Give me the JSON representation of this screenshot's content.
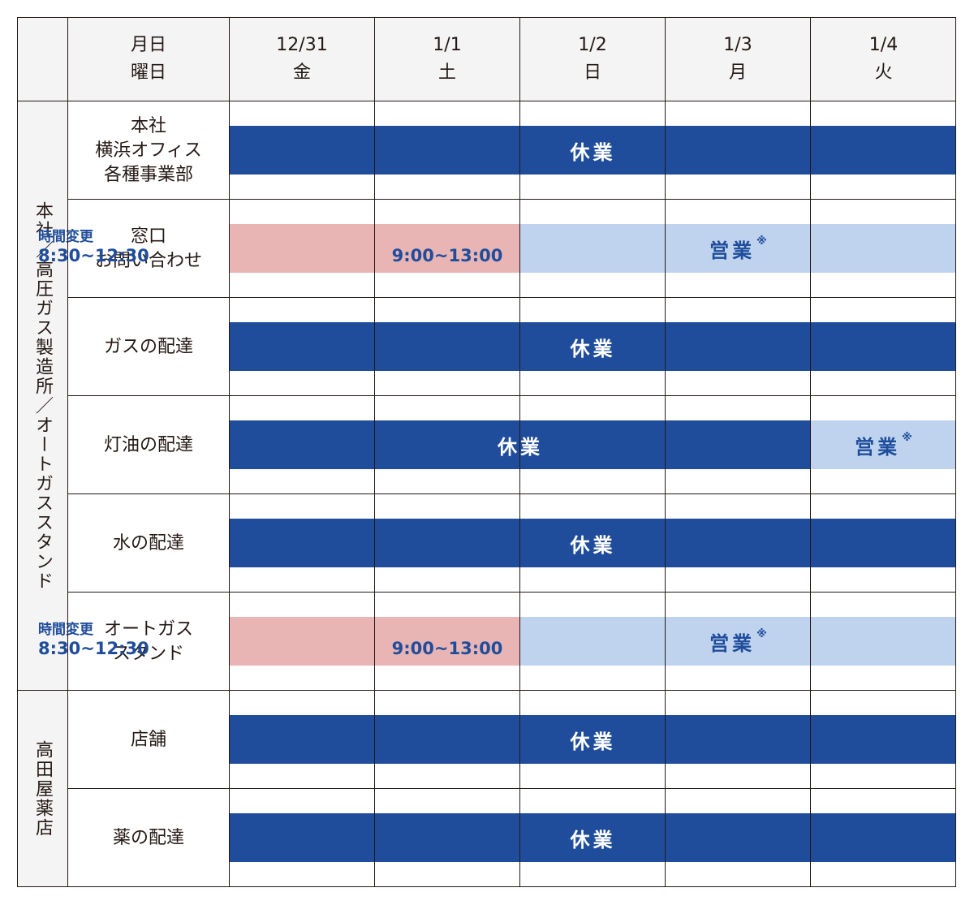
{
  "header": {
    "label_line1": "月日",
    "label_line2": "曜日",
    "days": [
      {
        "date": "12/31",
        "weekday": "金"
      },
      {
        "date": "1/1",
        "weekday": "土"
      },
      {
        "date": "1/2",
        "weekday": "日"
      },
      {
        "date": "1/3",
        "weekday": "月"
      },
      {
        "date": "1/4",
        "weekday": "火"
      }
    ]
  },
  "groups": [
    {
      "label": "本社／高圧ガス製造所／オートガススタンド"
    },
    {
      "label": "高田屋薬店"
    }
  ],
  "rows": [
    {
      "label_lines": [
        "本社",
        "横浜オフィス",
        "各種事業部"
      ]
    },
    {
      "label_lines": [
        "窓口",
        "お問い合わせ"
      ]
    },
    {
      "label_lines": [
        "ガスの配達"
      ]
    },
    {
      "label_lines": [
        "灯油の配達"
      ]
    },
    {
      "label_lines": [
        "水の配達"
      ]
    },
    {
      "label_lines": [
        "オートガス",
        "スタンド"
      ]
    },
    {
      "label_lines": [
        "店舗"
      ]
    },
    {
      "label_lines": [
        "薬の配達"
      ]
    }
  ],
  "status": {
    "closed": "休業",
    "open": "営業",
    "note_mark": "※",
    "changed_title": "時間変更",
    "changed_time_1": "8:30~12:30",
    "changed_time_2": "9:00~13:00"
  },
  "colors": {
    "closed_bar": "#1f4d9c",
    "open_bar": "#bfd3ee",
    "changed_bar": "#e8b4b4",
    "header_bg": "#f4f4f4",
    "grid_line": "#231815"
  }
}
